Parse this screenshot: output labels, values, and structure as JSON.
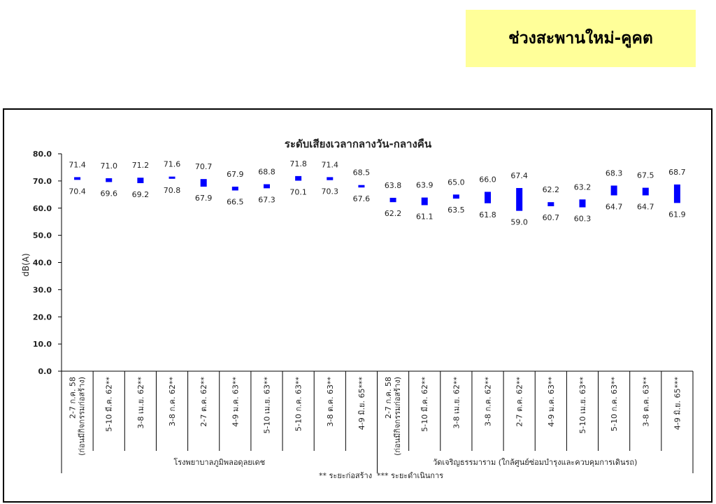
{
  "banner": {
    "title": "ช่วงสะพานใหม่-คูคต"
  },
  "chart_data": {
    "type": "bar",
    "subtype": "floating-range",
    "title": "ระดับเสียงเวลากลางวัน-กลางคืน",
    "ylabel": "dB(A)",
    "ylim": [
      0,
      80
    ],
    "yticks": [
      "0.0",
      "10.0",
      "20.0",
      "30.0",
      "40.0",
      "50.0",
      "60.0",
      "70.0",
      "80.0"
    ],
    "bar_color": "#0000ff",
    "categories": [
      "2-7 ก.ค. 58\n(ก่อนมีกิจกรรมก่อสร้าง)",
      "5-10 มี.ค. 62**",
      "3-8 เม.ย. 62**",
      "3-8 ก.ค. 62**",
      "2-7 ต.ค. 62**",
      "4-9 ม.ค. 63**",
      "5-10 เม.ย. 63**",
      "5-10 ก.ค. 63**",
      "3-8 ต.ค. 63**",
      "4-9 มิ.ย. 65***",
      "2-7 ก.ค. 58\n(ก่อนมีกิจกรรมก่อสร้าง)",
      "5-10 มี.ค. 62**",
      "3-8 เม.ย. 62**",
      "3-8 ก.ค. 62**",
      "2-7 ต.ค. 62**",
      "4-9 ม.ค. 63**",
      "5-10 เม.ย. 63**",
      "5-10 ก.ค. 63**",
      "3-8 ต.ค. 63**",
      "4-9 มิ.ย. 65***"
    ],
    "high": [
      71.4,
      71.0,
      71.2,
      71.6,
      70.7,
      67.9,
      68.8,
      71.8,
      71.4,
      68.5,
      63.8,
      63.9,
      65.0,
      66.0,
      67.4,
      62.2,
      63.2,
      68.3,
      67.5,
      68.7
    ],
    "low": [
      70.4,
      69.6,
      69.2,
      70.8,
      67.9,
      66.5,
      67.3,
      70.1,
      70.3,
      67.6,
      62.2,
      61.1,
      63.5,
      61.8,
      59.0,
      60.7,
      60.3,
      64.7,
      64.7,
      61.9
    ],
    "high_labels": [
      "71.4",
      "71.0",
      "71.2",
      "71.6",
      "70.7",
      "67.9",
      "68.8",
      "71.8",
      "71.4",
      "68.5",
      "63.8",
      "63.9",
      "65.0",
      "66.0",
      "67.4",
      "62.2",
      "63.2",
      "68.3",
      "67.5",
      "68.7"
    ],
    "low_labels": [
      "70.4",
      "69.6",
      "69.2",
      "70.8",
      "67.9",
      "66.5",
      "67.3",
      "70.1",
      "70.3",
      "67.6",
      "62.2",
      "61.1",
      "63.5",
      "61.8",
      "59.0",
      "60.7",
      "60.3",
      "64.7",
      "64.7",
      "61.9"
    ],
    "groups": [
      {
        "name": "โรงพยาบาลภูมิพลอดุลยเดช",
        "count": 10
      },
      {
        "name": "วัดเจริญธรรมาราม (ใกล้ศูนย์ซ่อมบำรุงและควบคุมการเดินรถ)",
        "count": 10
      }
    ],
    "footnotes": [
      "** ระยะก่อสร้าง",
      "*** ระยะดำเนินการ"
    ]
  }
}
